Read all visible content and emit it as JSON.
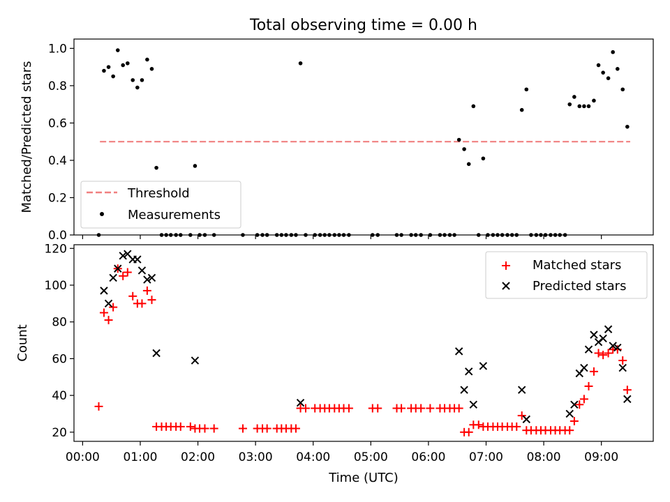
{
  "chart_data": [
    {
      "type": "scatter",
      "title": "Total observing time = 0.00 h",
      "ylabel": "Matched/Predicted stars",
      "xlabel": "",
      "ylim": [
        0,
        1.05
      ],
      "yticks": [
        "0.0",
        "0.2",
        "0.4",
        "0.6",
        "0.8",
        "1.0"
      ],
      "legend": {
        "placement": "lower-left",
        "entries": [
          "Threshold",
          "Measurements"
        ]
      },
      "threshold": {
        "name": "Threshold",
        "value": 0.5,
        "x_range": [
          0.3,
          9.5
        ],
        "color": "#f08080",
        "style": "dashed"
      },
      "series": [
        {
          "name": "Measurements",
          "color": "#000000",
          "marker": "dot",
          "x": [
            0.28,
            0.37,
            0.45,
            0.53,
            0.61,
            0.7,
            0.78,
            0.87,
            0.95,
            1.03,
            1.12,
            1.2,
            1.28,
            1.37,
            1.45,
            1.53,
            1.62,
            1.7,
            1.87,
            1.95,
            2.03,
            2.12,
            2.28,
            2.78,
            3.03,
            3.12,
            3.2,
            3.37,
            3.45,
            3.53,
            3.62,
            3.7,
            3.78,
            3.87,
            4.03,
            4.12,
            4.2,
            4.28,
            4.37,
            4.45,
            4.53,
            4.62,
            5.03,
            5.12,
            5.45,
            5.53,
            5.7,
            5.78,
            5.87,
            6.03,
            6.2,
            6.28,
            6.37,
            6.45,
            6.53,
            6.62,
            6.7,
            6.78,
            6.87,
            6.95,
            7.03,
            7.12,
            7.2,
            7.28,
            7.37,
            7.45,
            7.53,
            7.62,
            7.7,
            7.78,
            7.87,
            7.95,
            8.03,
            8.12,
            8.2,
            8.28,
            8.37,
            8.45,
            8.53,
            8.62,
            8.7,
            8.78,
            8.87,
            8.95,
            9.03,
            9.12,
            9.2,
            9.28,
            9.37,
            9.45
          ],
          "y": [
            0.0,
            0.88,
            0.9,
            0.85,
            0.99,
            0.91,
            0.92,
            0.83,
            0.79,
            0.83,
            0.94,
            0.89,
            0.36,
            0.0,
            0.0,
            0.0,
            0.0,
            0.0,
            0.0,
            0.37,
            0.0,
            0.0,
            0.0,
            0.0,
            0.0,
            0.0,
            0.0,
            0.0,
            0.0,
            0.0,
            0.0,
            0.0,
            0.92,
            0.0,
            0.0,
            0.0,
            0.0,
            0.0,
            0.0,
            0.0,
            0.0,
            0.0,
            0.0,
            0.0,
            0.0,
            0.0,
            0.0,
            0.0,
            0.0,
            0.0,
            0.0,
            0.0,
            0.0,
            0.0,
            0.51,
            0.46,
            0.38,
            0.69,
            0.0,
            0.41,
            0.0,
            0.0,
            0.0,
            0.0,
            0.0,
            0.0,
            0.0,
            0.67,
            0.78,
            0.0,
            0.0,
            0.0,
            0.0,
            0.0,
            0.0,
            0.0,
            0.0,
            0.7,
            0.74,
            0.69,
            0.69,
            0.69,
            0.72,
            0.91,
            0.87,
            0.84,
            0.98,
            0.89,
            0.78,
            0.58
          ]
        }
      ]
    },
    {
      "type": "scatter",
      "title": "",
      "ylabel": "Count",
      "xlabel": "Time (UTC)",
      "xlim": [
        -0.15,
        9.9
      ],
      "ylim": [
        15,
        122
      ],
      "xticks": [
        {
          "value": 0,
          "label": "00:00"
        },
        {
          "value": 1,
          "label": "01:00"
        },
        {
          "value": 2,
          "label": "02:00"
        },
        {
          "value": 3,
          "label": "03:00"
        },
        {
          "value": 4,
          "label": "04:00"
        },
        {
          "value": 5,
          "label": "05:00"
        },
        {
          "value": 6,
          "label": "06:00"
        },
        {
          "value": 7,
          "label": "07:00"
        },
        {
          "value": 8,
          "label": "08:00"
        },
        {
          "value": 9,
          "label": "09:00"
        }
      ],
      "yticks": [
        "20",
        "40",
        "60",
        "80",
        "100",
        "120"
      ],
      "legend": {
        "placement": "top-right",
        "entries": [
          "Matched stars",
          "Predicted stars"
        ]
      },
      "series": [
        {
          "name": "Matched stars",
          "color": "#ff0000",
          "marker": "plus",
          "x": [
            0.28,
            0.37,
            0.45,
            0.53,
            0.61,
            0.7,
            0.78,
            0.87,
            0.95,
            1.03,
            1.12,
            1.2,
            1.28,
            1.37,
            1.45,
            1.53,
            1.62,
            1.7,
            1.87,
            1.95,
            2.03,
            2.12,
            2.28,
            2.78,
            3.03,
            3.12,
            3.2,
            3.37,
            3.45,
            3.53,
            3.62,
            3.7,
            3.78,
            3.87,
            4.03,
            4.12,
            4.2,
            4.28,
            4.37,
            4.45,
            4.53,
            4.62,
            5.03,
            5.12,
            5.45,
            5.53,
            5.7,
            5.78,
            5.87,
            6.03,
            6.2,
            6.28,
            6.37,
            6.45,
            6.53,
            6.62,
            6.7,
            6.78,
            6.87,
            6.95,
            7.03,
            7.12,
            7.2,
            7.28,
            7.37,
            7.45,
            7.53,
            7.62,
            7.7,
            7.78,
            7.87,
            7.95,
            8.03,
            8.12,
            8.2,
            8.28,
            8.37,
            8.45,
            8.53,
            8.62,
            8.7,
            8.78,
            8.87,
            8.95,
            9.03,
            9.12,
            9.2,
            9.28,
            9.37,
            9.45
          ],
          "y": [
            34,
            85,
            81,
            88,
            109,
            105,
            107,
            94,
            90,
            90,
            97,
            92,
            23,
            23,
            23,
            23,
            23,
            23,
            23,
            22,
            22,
            22,
            22,
            22,
            22,
            22,
            22,
            22,
            22,
            22,
            22,
            22,
            33,
            33,
            33,
            33,
            33,
            33,
            33,
            33,
            33,
            33,
            33,
            33,
            33,
            33,
            33,
            33,
            33,
            33,
            33,
            33,
            33,
            33,
            33,
            20,
            20,
            24,
            24,
            23,
            23,
            23,
            23,
            23,
            23,
            23,
            23,
            29,
            21,
            21,
            21,
            21,
            21,
            21,
            21,
            21,
            21,
            21,
            26,
            35,
            38,
            45,
            53,
            63,
            62,
            63,
            65,
            65,
            59,
            43
          ]
        },
        {
          "name": "Predicted stars",
          "color": "#000000",
          "marker": "x",
          "x": [
            0.37,
            0.45,
            0.53,
            0.61,
            0.7,
            0.78,
            0.87,
            0.95,
            1.03,
            1.12,
            1.2,
            1.28,
            1.95,
            3.78,
            6.53,
            6.62,
            6.7,
            6.78,
            6.95,
            7.62,
            7.7,
            8.45,
            8.53,
            8.62,
            8.7,
            8.78,
            8.87,
            8.95,
            9.03,
            9.12,
            9.2,
            9.28,
            9.37,
            9.45
          ],
          "y": [
            97,
            90,
            104,
            109,
            116,
            117,
            114,
            114,
            108,
            103,
            104,
            63,
            59,
            36,
            64,
            43,
            53,
            35,
            56,
            43,
            27,
            30,
            35,
            52,
            55,
            65,
            73,
            69,
            71,
            76,
            67,
            66,
            55,
            38
          ]
        }
      ]
    }
  ]
}
